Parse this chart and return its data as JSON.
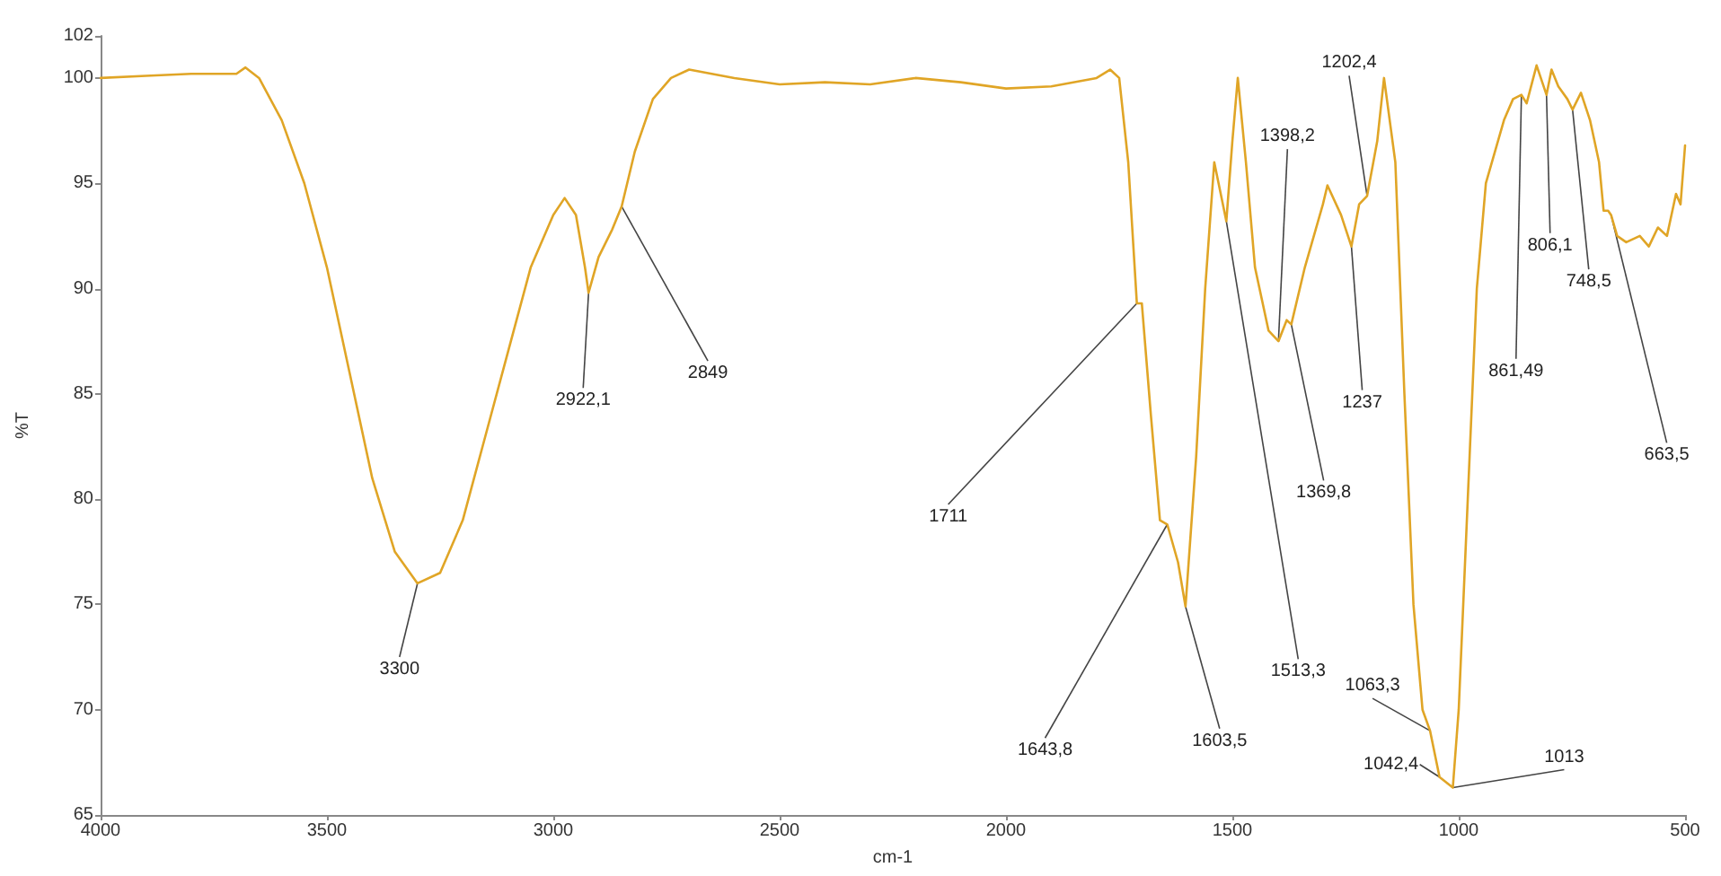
{
  "chart_data": {
    "type": "line",
    "xlabel": "cm-1",
    "ylabel": "%T",
    "xlim": [
      4000,
      500
    ],
    "xticks": [
      4000,
      3500,
      3000,
      2500,
      2000,
      1500,
      1000,
      500
    ],
    "ylim": [
      65,
      102
    ],
    "yticks": [
      65,
      70,
      75,
      80,
      85,
      90,
      95,
      100,
      102
    ],
    "grid": false,
    "marker": "none",
    "line_style": "solid",
    "series": [
      {
        "color": "#e0a526",
        "x": [
          4000,
          3900,
          3800,
          3700,
          3680,
          3650,
          3600,
          3550,
          3500,
          3450,
          3400,
          3350,
          3300,
          3250,
          3200,
          3150,
          3100,
          3050,
          3000,
          2975,
          2950,
          2930,
          2922.1,
          2900,
          2870,
          2849,
          2820,
          2780,
          2740,
          2700,
          2600,
          2500,
          2400,
          2300,
          2200,
          2100,
          2000,
          1900,
          1800,
          1770,
          1750,
          1730,
          1711,
          1700,
          1680,
          1660,
          1643.8,
          1620,
          1603.5,
          1580,
          1560,
          1540,
          1513.3,
          1500,
          1488,
          1470,
          1450,
          1420,
          1398.2,
          1380,
          1369.8,
          1340,
          1300,
          1290,
          1260,
          1237,
          1220,
          1202.4,
          1180,
          1165,
          1140,
          1120,
          1100,
          1080,
          1063.3,
          1042.4,
          1013,
          1000,
          980,
          960,
          940,
          900,
          880,
          861.49,
          850,
          828,
          806.1,
          795,
          780,
          760,
          748.5,
          730,
          710,
          690,
          680,
          670,
          663.5,
          650,
          630,
          600,
          580,
          560,
          540,
          520,
          510,
          500
        ],
        "values": [
          100,
          100.1,
          100.2,
          100.2,
          100.5,
          100,
          98,
          95,
          91,
          86,
          81,
          77.5,
          76,
          76.5,
          79,
          83,
          87,
          91,
          93.5,
          94.3,
          93.5,
          91,
          89.8,
          91.5,
          92.8,
          93.9,
          96.5,
          99,
          100,
          100.4,
          100,
          99.7,
          99.8,
          99.7,
          100,
          99.8,
          99.5,
          99.6,
          100,
          100.4,
          100,
          96,
          89.3,
          89.3,
          84,
          79,
          78.8,
          77,
          74.9,
          82,
          90,
          96,
          93.2,
          97,
          100,
          96,
          91,
          88,
          87.5,
          88.5,
          88.3,
          91,
          94,
          94.9,
          93.5,
          92,
          94,
          94.4,
          97,
          100,
          96,
          85,
          75,
          70,
          69,
          66.8,
          66.3,
          70,
          80,
          90,
          95,
          98,
          99,
          99.2,
          98.8,
          100.6,
          99.2,
          100.4,
          99.6,
          99,
          98.5,
          99.3,
          98,
          96,
          93.7,
          93.7,
          93.5,
          92.5,
          92.2,
          92.5,
          92,
          92.9,
          92.5,
          94.5,
          94,
          96.8
        ]
      }
    ],
    "annotations": [
      {
        "text": "3300",
        "x": 3300,
        "y": 76
      },
      {
        "text": "2922,1",
        "x": 2922.1,
        "y": 89.8
      },
      {
        "text": "2849",
        "x": 2849,
        "y": 93.9
      },
      {
        "text": "1711",
        "x": 1711,
        "y": 89.3
      },
      {
        "text": "1643,8",
        "x": 1643.8,
        "y": 78.8
      },
      {
        "text": "1603,5",
        "x": 1603.5,
        "y": 74.9
      },
      {
        "text": "1513,3",
        "x": 1513.3,
        "y": 93.2
      },
      {
        "text": "1398,2",
        "x": 1398.2,
        "y": 87.5
      },
      {
        "text": "1369,8",
        "x": 1369.8,
        "y": 88.3
      },
      {
        "text": "1237",
        "x": 1237,
        "y": 92
      },
      {
        "text": "1202,4",
        "x": 1202.4,
        "y": 94.4
      },
      {
        "text": "1063,3",
        "x": 1063.3,
        "y": 69
      },
      {
        "text": "1042,4",
        "x": 1042.4,
        "y": 66.8
      },
      {
        "text": "1013",
        "x": 1013,
        "y": 66.3
      },
      {
        "text": "861,49",
        "x": 861.49,
        "y": 99.2
      },
      {
        "text": "806,1",
        "x": 806.1,
        "y": 99.2
      },
      {
        "text": "748,5",
        "x": 748.5,
        "y": 98.5
      },
      {
        "text": "663,5",
        "x": 663.5,
        "y": 93.5
      }
    ]
  }
}
